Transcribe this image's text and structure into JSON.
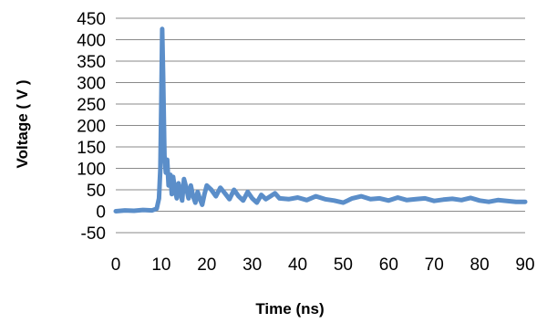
{
  "chart_data": {
    "type": "line",
    "title": "",
    "xlabel": "Time (ns)",
    "ylabel": "Voltage ( V )",
    "xlim": [
      0,
      90
    ],
    "ylim": [
      -50,
      450
    ],
    "xticks": [
      0,
      10,
      20,
      30,
      40,
      50,
      60,
      70,
      80,
      90
    ],
    "yticks": [
      -50,
      0,
      50,
      100,
      150,
      200,
      250,
      300,
      350,
      400,
      450
    ],
    "grid": "horizontal",
    "legend": "none",
    "line_color": "#5b8ec9",
    "series": [
      {
        "x": [
          0,
          2,
          4,
          6,
          8,
          9,
          9.5,
          9.8,
          10,
          10.2,
          10.4,
          10.7,
          11,
          11.3,
          11.6,
          12,
          12.3,
          12.6,
          13,
          13.4,
          13.8,
          14.2,
          14.6,
          15,
          15.5,
          16,
          16.5,
          17,
          17.5,
          18,
          18.5,
          19,
          19.5,
          20,
          21,
          22,
          23,
          24,
          25,
          26,
          27,
          28,
          29,
          30,
          31,
          32,
          33,
          34,
          35,
          36,
          38,
          40,
          42,
          44,
          46,
          48,
          50,
          52,
          54,
          56,
          58,
          60,
          62,
          64,
          66,
          68,
          70,
          72,
          74,
          76,
          78,
          80,
          82,
          84,
          86,
          88,
          90
        ],
        "y": [
          0,
          2,
          1,
          3,
          2,
          6,
          30,
          100,
          250,
          425,
          320,
          130,
          90,
          120,
          60,
          85,
          40,
          80,
          50,
          30,
          65,
          45,
          25,
          75,
          55,
          30,
          60,
          35,
          20,
          45,
          28,
          15,
          40,
          60,
          50,
          35,
          55,
          42,
          28,
          50,
          35,
          25,
          45,
          30,
          20,
          38,
          28,
          35,
          42,
          30,
          28,
          32,
          26,
          35,
          28,
          25,
          20,
          30,
          35,
          28,
          30,
          25,
          32,
          26,
          28,
          30,
          24,
          27,
          29,
          26,
          31,
          25,
          22,
          26,
          24,
          22,
          22
        ]
      }
    ]
  }
}
